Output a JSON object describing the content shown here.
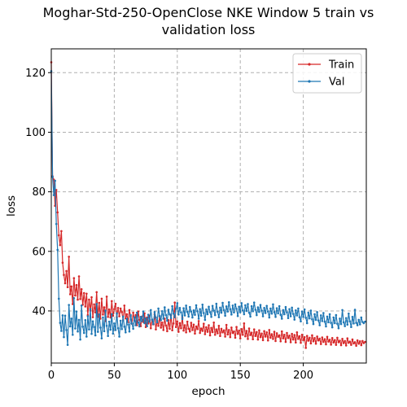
{
  "chart_data": {
    "type": "line",
    "title_line1": "Moghar-Std-250-OpenClose NKE Window 5 train vs",
    "title_line2": "validation loss",
    "xlabel": "epoch",
    "ylabel": "loss",
    "xlim": [
      0,
      250
    ],
    "ylim": [
      22.5,
      128
    ],
    "xticks": [
      0,
      50,
      100,
      150,
      200
    ],
    "yticks": [
      40,
      60,
      80,
      100,
      120
    ],
    "grid": true,
    "legend_position": "top-right",
    "marker": "dot",
    "series": [
      {
        "name": "Train",
        "color": "#d62728",
        "values": [
          123.5,
          85.2,
          84.1,
          75.3,
          80.6,
          73.1,
          65.4,
          62.1,
          66.8,
          56.2,
          52.1,
          49.3,
          53.4,
          48.0,
          58.2,
          45.6,
          48.2,
          42.3,
          51.0,
          45.2,
          48.7,
          43.8,
          51.6,
          44.0,
          47.3,
          42.1,
          46.0,
          41.5,
          45.8,
          38.6,
          43.8,
          40.1,
          44.6,
          37.9,
          42.2,
          39.5,
          46.3,
          38.0,
          42.7,
          37.4,
          44.1,
          38.8,
          41.2,
          36.6,
          44.8,
          38.0,
          40.5,
          37.8,
          43.3,
          38.4,
          40.6,
          42.4,
          37.9,
          41.0,
          38.2,
          40.8,
          39.6,
          36.9,
          41.8,
          37.5,
          38.9,
          36.2,
          40.3,
          38.1,
          35.7,
          39.4,
          36.8,
          38.6,
          35.2,
          39.8,
          37.0,
          34.9,
          38.1,
          36.3,
          39.2,
          34.6,
          37.8,
          35.8,
          38.4,
          34.2,
          37.0,
          35.5,
          38.9,
          33.8,
          36.7,
          35.0,
          38.2,
          34.4,
          36.1,
          33.6,
          37.4,
          35.1,
          33.2,
          36.9,
          34.0,
          38.6,
          33.5,
          35.8,
          42.8,
          34.6,
          36.5,
          33.0,
          35.9,
          34.2,
          37.8,
          33.4,
          35.2,
          32.8,
          36.4,
          34.0,
          33.1,
          36.0,
          33.6,
          35.4,
          32.4,
          34.8,
          33.9,
          36.6,
          32.6,
          34.1,
          33.3,
          35.7,
          32.2,
          34.5,
          33.0,
          35.2,
          31.8,
          34.3,
          32.9,
          36.1,
          32.0,
          33.8,
          32.5,
          35.0,
          31.6,
          34.0,
          32.8,
          33.5,
          31.4,
          35.3,
          32.1,
          33.6,
          31.2,
          34.4,
          32.6,
          33.1,
          31.0,
          34.6,
          32.3,
          33.4,
          30.8,
          33.9,
          32.0,
          35.8,
          31.5,
          33.3,
          30.6,
          34.1,
          31.9,
          32.7,
          30.5,
          33.8,
          31.6,
          32.9,
          30.4,
          33.5,
          31.2,
          32.4,
          30.2,
          33.2,
          31.4,
          32.8,
          30.1,
          33.6,
          31.0,
          32.2,
          30.6,
          33.0,
          29.9,
          32.5,
          31.3,
          31.8,
          29.8,
          33.1,
          30.8,
          32.0,
          29.6,
          32.6,
          30.9,
          31.7,
          29.5,
          32.3,
          30.4,
          31.9,
          29.4,
          32.8,
          30.6,
          31.5,
          29.3,
          32.0,
          30.2,
          31.2,
          27.6,
          31.6,
          30.0,
          31.0,
          29.1,
          31.8,
          29.8,
          30.9,
          29.0,
          31.4,
          30.1,
          30.7,
          28.9,
          31.1,
          29.6,
          30.5,
          28.8,
          31.3,
          29.7,
          30.3,
          28.7,
          30.9,
          29.4,
          30.2,
          28.6,
          31.0,
          29.5,
          30.0,
          28.5,
          30.6,
          29.2,
          29.9,
          28.4,
          30.8,
          29.3,
          29.7,
          28.6,
          30.4,
          29.1,
          29.5,
          28.3,
          30.1,
          29.0,
          29.8,
          28.5,
          29.9,
          29.2,
          29.6
        ]
      },
      {
        "name": "Val",
        "color": "#1f77b4",
        "values": [
          120.5,
          85.0,
          78.9,
          83.7,
          69.2,
          60.5,
          44.1,
          36.0,
          33.3,
          38.5,
          31.2,
          38.4,
          33.6,
          28.6,
          42.0,
          34.8,
          37.4,
          32.0,
          44.3,
          34.1,
          39.8,
          33.1,
          37.0,
          30.4,
          41.8,
          34.7,
          32.6,
          36.9,
          31.4,
          38.2,
          33.8,
          40.6,
          32.3,
          36.5,
          34.6,
          31.8,
          42.3,
          33.0,
          38.8,
          34.4,
          30.8,
          37.8,
          33.2,
          40.1,
          35.0,
          31.6,
          36.4,
          33.7,
          38.9,
          32.4,
          35.8,
          33.6,
          39.2,
          34.2,
          31.4,
          36.7,
          33.9,
          38.1,
          34.7,
          32.8,
          37.3,
          35.4,
          33.1,
          38.6,
          35.8,
          34.0,
          37.9,
          35.2,
          39.4,
          36.1,
          34.8,
          38.0,
          36.6,
          39.8,
          35.9,
          37.5,
          34.9,
          38.7,
          36.4,
          40.3,
          37.1,
          35.6,
          39.6,
          37.8,
          36.2,
          40.8,
          38.3,
          36.9,
          39.9,
          37.4,
          41.2,
          38.6,
          36.7,
          40.4,
          38.9,
          37.6,
          41.6,
          39.1,
          37.9,
          40.7,
          42.6,
          38.8,
          41.0,
          39.5,
          37.3,
          40.9,
          38.5,
          41.8,
          39.7,
          38.1,
          41.3,
          39.8,
          37.8,
          40.2,
          38.7,
          41.9,
          39.9,
          37.4,
          40.6,
          38.4,
          42.1,
          39.3,
          37.0,
          40.5,
          38.9,
          41.4,
          39.6,
          38.0,
          41.7,
          40.1,
          38.6,
          42.4,
          39.7,
          37.9,
          41.1,
          39.4,
          42.7,
          40.3,
          38.4,
          41.5,
          39.8,
          42.9,
          40.6,
          38.8,
          41.8,
          39.5,
          42.2,
          40.7,
          38.3,
          41.4,
          39.6,
          42.6,
          40.2,
          38.9,
          41.9,
          40.0,
          42.3,
          39.4,
          38.1,
          41.6,
          39.9,
          42.8,
          40.4,
          38.6,
          41.2,
          39.7,
          42.0,
          40.1,
          38.2,
          41.0,
          39.3,
          41.7,
          39.8,
          37.8,
          40.8,
          39.1,
          42.2,
          39.6,
          38.0,
          40.9,
          39.2,
          41.6,
          38.7,
          37.4,
          40.3,
          38.9,
          41.3,
          39.5,
          37.6,
          40.6,
          38.2,
          41.1,
          39.0,
          37.1,
          40.2,
          38.5,
          40.8,
          37.9,
          36.5,
          39.8,
          38.0,
          40.5,
          37.7,
          35.9,
          39.4,
          37.5,
          40.1,
          37.2,
          35.6,
          38.9,
          37.0,
          39.6,
          36.8,
          35.2,
          38.5,
          36.6,
          39.3,
          36.4,
          34.8,
          38.1,
          36.2,
          38.9,
          36.0,
          34.5,
          37.8,
          35.9,
          38.6,
          35.7,
          34.2,
          37.4,
          35.6,
          40.3,
          36.2,
          34.9,
          37.6,
          35.4,
          39.1,
          36.5,
          34.6,
          38.0,
          35.8,
          40.4,
          36.0,
          35.2,
          37.0,
          35.5,
          37.8,
          36.3,
          35.9,
          36.4
        ]
      }
    ]
  }
}
